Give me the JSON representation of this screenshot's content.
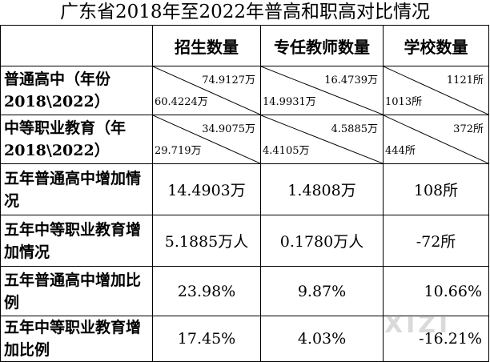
{
  "title": "广东省2018年至2022年普高和职高对比情况",
  "headers": [
    "",
    "招生数量",
    "专任教师数量",
    "学校数量"
  ],
  "split_rows": [
    {
      "label": "普通高中（年份2018\\2022）",
      "cells": [
        {
          "top": "74.9127万",
          "bottom": "60.4224万"
        },
        {
          "top": "16.4739万",
          "bottom": "14.9931万"
        },
        {
          "top": "1121所",
          "bottom": "1013所"
        }
      ]
    },
    {
      "label": "中等职业教育（年2018\\2022）",
      "cells": [
        {
          "top": "34.9075万",
          "bottom": "29.719万"
        },
        {
          "top": "4.5885万",
          "bottom": "4.4105万"
        },
        {
          "top": "372所",
          "bottom": "444所"
        }
      ]
    }
  ],
  "value_rows": [
    {
      "label": "五年普通高中增加情况",
      "values": [
        "14.4903万",
        "1.4808万",
        "108所"
      ]
    },
    {
      "label": "五年中等职业教育增加情况",
      "values": [
        "5.1885万人",
        "0.1780万人",
        "-72所"
      ]
    },
    {
      "label": "五年普通高中增加比例",
      "values": [
        "23.98%",
        "9.87%",
        "10.66%"
      ]
    },
    {
      "label": "五年中等职业教育增加比例",
      "values": [
        "17.45%",
        "4.03%",
        "-16.21%"
      ]
    }
  ],
  "watermark": "XIZI"
}
